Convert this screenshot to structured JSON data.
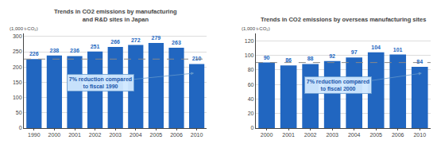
{
  "chart_data": [
    {
      "type": "bar",
      "title": "Trends in CO2 emissions by manufacturing\nand R&D sites in Japan",
      "ylabel": "(1,000 t-CO₂)",
      "categories": [
        "1990",
        "2000",
        "2001",
        "2002",
        "2003",
        "2004",
        "2005",
        "2006",
        "2010"
      ],
      "values": [
        226,
        238,
        236,
        251,
        266,
        272,
        279,
        263,
        210
      ],
      "color": "#2166c0",
      "ylim": [
        0,
        310
      ],
      "yticks": [
        0,
        50,
        100,
        150,
        200,
        250,
        300
      ],
      "grid": true,
      "data_labels": true,
      "ref_line": 226,
      "annotation": "7% reduction compared\nto fiscal 1990"
    },
    {
      "type": "bar",
      "title": "Trends in CO2 emissions by overseas manufacturing sites",
      "ylabel": "(1,000 t-CO₂)",
      "categories": [
        "2000",
        "2001",
        "2002",
        "2003",
        "2004",
        "2005",
        "2006",
        "2010"
      ],
      "values": [
        90,
        86,
        88,
        92,
        97,
        104,
        101,
        84
      ],
      "color": "#2166c0",
      "ylim": [
        0,
        130
      ],
      "yticks": [
        0,
        20,
        40,
        60,
        80,
        100,
        120
      ],
      "grid": true,
      "data_labels": true,
      "ref_line": 90,
      "annotation": "7% reduction compared\nto fiscal 2000"
    }
  ]
}
